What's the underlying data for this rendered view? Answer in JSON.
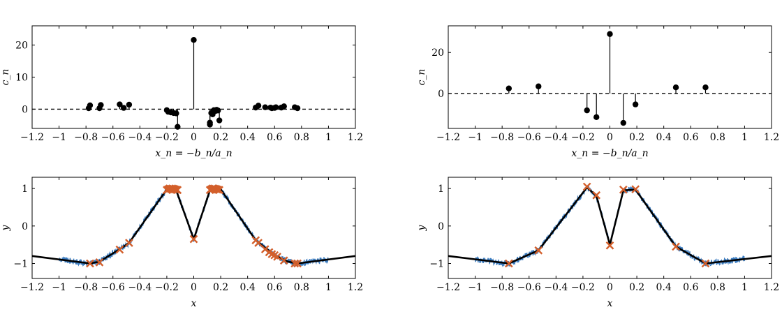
{
  "chart_data": [
    {
      "type": "scatter",
      "xlabel": "x_n = −b_n/a_n",
      "ylabel": "c_n",
      "xlim": [
        -1.2,
        1.2
      ],
      "ylim": [
        -6,
        26
      ],
      "xticks": [
        "−1.2",
        "−1",
        "−0.8",
        "−0.6",
        "−0.4",
        "−0.2",
        "0",
        "0.2",
        "0.4",
        "0.6",
        "0.8",
        "1",
        "1.2"
      ],
      "yticks": [
        "0",
        "10",
        "20"
      ],
      "baseline": "dashed",
      "series": [
        {
          "x": [
            -0.78,
            -0.77,
            -0.7,
            -0.69,
            -0.55,
            -0.52,
            -0.48,
            -0.2,
            -0.19,
            -0.17,
            -0.15,
            -0.13,
            -0.12,
            0,
            0.12,
            0.12,
            0.13,
            0.14,
            0.15,
            0.16,
            0.17,
            0.18,
            0.19,
            0.46,
            0.48,
            0.53,
            0.57,
            0.58,
            0.6,
            0.61,
            0.65,
            0.67,
            0.75,
            0.77
          ],
          "y": [
            0.3,
            1.2,
            0.3,
            1.3,
            1.5,
            0.4,
            1.4,
            -0.3,
            -0.8,
            -1.0,
            -1.2,
            -1.3,
            -5.5,
            21.6,
            -4.2,
            -4.8,
            -1.2,
            -1.6,
            -0.3,
            -0.6,
            -0.2,
            -0.4,
            -3.5,
            0.5,
            1.1,
            0.6,
            0.5,
            0.3,
            0.4,
            0.6,
            0.5,
            0.9,
            0.6,
            0.3
          ]
        }
      ]
    },
    {
      "type": "scatter",
      "xlabel": "x_n = −b_n/a_n",
      "ylabel": "c_n",
      "xlim": [
        -1.2,
        1.2
      ],
      "ylim": [
        -17,
        33
      ],
      "xticks": [
        "−1.2",
        "−1",
        "−0.8",
        "−0.6",
        "−0.4",
        "−0.2",
        "0",
        "0.2",
        "0.4",
        "0.6",
        "0.8",
        "1",
        "1.2"
      ],
      "yticks": [
        "0",
        "20"
      ],
      "baseline": "dashed",
      "series": [
        {
          "x": [
            -0.75,
            -0.53,
            -0.17,
            -0.1,
            0,
            0.1,
            0.19,
            0.49,
            0.71
          ],
          "y": [
            2.5,
            3.5,
            -8.2,
            -11.5,
            29,
            -14.3,
            -5.3,
            3,
            3
          ]
        }
      ]
    },
    {
      "type": "line",
      "xlabel": "x",
      "ylabel": "y",
      "xlim": [
        -1.2,
        1.2
      ],
      "ylim": [
        -1.4,
        1.3
      ],
      "xticks": [
        "−1.2",
        "−1",
        "−0.8",
        "−0.6",
        "−0.4",
        "−0.2",
        "0",
        "0.2",
        "0.4",
        "0.6",
        "0.8",
        "1",
        "1.2"
      ],
      "yticks": [
        "−1",
        "0",
        "1"
      ],
      "colors": {
        "data": "#3a7bbf",
        "model": "#000000",
        "markers": "#d35f2b"
      },
      "model_x": [
        -1.2,
        -0.77,
        -0.7,
        -0.55,
        -0.48,
        -0.2,
        -0.15,
        -0.13,
        0,
        0.12,
        0.15,
        0.2,
        0.46,
        0.6,
        0.7,
        0.77,
        1.2
      ],
      "model_y": [
        -0.8,
        -1.0,
        -0.95,
        -0.62,
        -0.45,
        0.98,
        1.0,
        0.95,
        -0.35,
        0.95,
        1.0,
        0.98,
        -0.38,
        -0.78,
        -0.95,
        -1.0,
        -0.8
      ],
      "markers_x": [
        -0.77,
        -0.7,
        -0.55,
        -0.48,
        -0.2,
        -0.19,
        -0.18,
        -0.17,
        -0.16,
        -0.15,
        -0.14,
        -0.13,
        -0.12,
        0,
        0.12,
        0.13,
        0.14,
        0.15,
        0.16,
        0.17,
        0.18,
        0.19,
        0.46,
        0.48,
        0.53,
        0.56,
        0.58,
        0.6,
        0.62,
        0.67,
        0.75,
        0.77
      ],
      "markers_y": [
        -1.0,
        -0.97,
        -0.63,
        -0.45,
        0.96,
        0.98,
        1.0,
        0.99,
        1.0,
        0.99,
        0.98,
        0.97,
        0.96,
        -0.35,
        0.96,
        0.98,
        1.0,
        1.0,
        0.99,
        0.98,
        0.97,
        0.96,
        -0.38,
        -0.45,
        -0.62,
        -0.7,
        -0.75,
        -0.78,
        -0.82,
        -0.92,
        -1.0,
        -1.0
      ]
    },
    {
      "type": "line",
      "xlabel": "x",
      "ylabel": "y",
      "xlim": [
        -1.2,
        1.2
      ],
      "ylim": [
        -1.4,
        1.3
      ],
      "xticks": [
        "−1.2",
        "−1",
        "−0.8",
        "−0.6",
        "−0.4",
        "−0.2",
        "0",
        "0.2",
        "0.4",
        "0.6",
        "0.8",
        "1",
        "1.2"
      ],
      "yticks": [
        "−1",
        "0",
        "1"
      ],
      "colors": {
        "data": "#3a7bbf",
        "model": "#000000",
        "markers": "#d35f2b"
      },
      "model_x": [
        -1.2,
        -0.75,
        -0.53,
        -0.17,
        -0.1,
        0,
        0.1,
        0.19,
        0.49,
        0.71,
        1.2
      ],
      "model_y": [
        -0.8,
        -1.0,
        -0.65,
        1.03,
        0.8,
        -0.5,
        0.95,
        0.97,
        -0.55,
        -1.0,
        -0.8
      ],
      "markers_x": [
        -0.75,
        -0.53,
        -0.17,
        -0.1,
        0,
        0.1,
        0.19,
        0.49,
        0.71
      ],
      "markers_y": [
        -1.0,
        -0.65,
        1.05,
        0.82,
        -0.52,
        0.97,
        0.98,
        -0.55,
        -1.0
      ]
    }
  ]
}
